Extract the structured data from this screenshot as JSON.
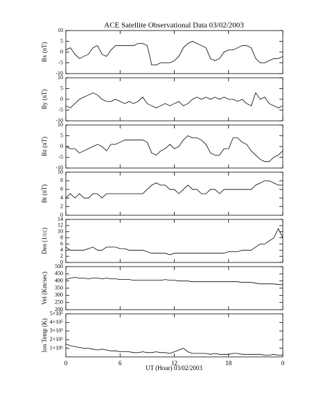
{
  "chart_data": {
    "type": "line",
    "title": "ACE Satellite Observational Data   03/02/2003",
    "x_label": "UT (Hour)   03/02/2003",
    "x": [
      0,
      0.5,
      1,
      1.5,
      2,
      2.5,
      3,
      3.5,
      4,
      4.5,
      5,
      5.5,
      6,
      6.5,
      7,
      7.5,
      8,
      8.5,
      9,
      9.5,
      10,
      10.5,
      11,
      11.5,
      12,
      12.5,
      13,
      13.5,
      14,
      14.5,
      15,
      15.5,
      16,
      16.5,
      17,
      17.5,
      18,
      18.5,
      19,
      19.5,
      20,
      20.5,
      21,
      21.5,
      22,
      22.5,
      23,
      23.5,
      24
    ],
    "xlim": [
      0,
      24
    ],
    "xticks": [
      0,
      6,
      12,
      18,
      {
        "value": 24,
        "label": "0"
      }
    ],
    "series": [
      {
        "name": "Bx (nT)",
        "color": "#000000",
        "ylim": [
          -10,
          10
        ],
        "yticks": [
          -10,
          -5,
          0,
          5,
          10
        ],
        "values": [
          1,
          2,
          -1,
          -3,
          -2,
          -1,
          2,
          3,
          -1,
          -2,
          1,
          3,
          3,
          3,
          3,
          3,
          4,
          4,
          3,
          -6,
          -6,
          -5,
          -5,
          -5,
          -4,
          -2,
          2,
          4,
          5,
          4,
          3,
          2,
          -3,
          -4,
          -3,
          0,
          1,
          1,
          2,
          3,
          3,
          2,
          -3,
          -5,
          -5,
          -4,
          -3,
          -3,
          -2
        ]
      },
      {
        "name": "By (nT)",
        "color": "#000000",
        "ylim": [
          -10,
          10
        ],
        "yticks": [
          -10,
          -5,
          0,
          5,
          10
        ],
        "values": [
          -3,
          -4,
          -2,
          0,
          1,
          2,
          3,
          2,
          0,
          -1,
          -1,
          0,
          -1,
          -2,
          -1,
          -2,
          -1,
          1,
          -2,
          -3,
          -4,
          -3,
          -2,
          -3,
          -2,
          -1,
          -3,
          -2,
          0,
          1,
          0,
          1,
          0,
          1,
          0,
          1,
          0,
          0,
          -1,
          0,
          -2,
          -3,
          3,
          0,
          1,
          -2,
          -3,
          -4,
          -3
        ]
      },
      {
        "name": "Bz (nT)",
        "color": "#000000",
        "ylim": [
          -10,
          10
        ],
        "yticks": [
          -10,
          -5,
          0,
          5,
          10
        ],
        "values": [
          0,
          -1,
          -1,
          -3,
          -2,
          -1,
          0,
          1,
          0,
          -2,
          1,
          1,
          2,
          3,
          3,
          3,
          3,
          3,
          2,
          -3,
          -4,
          -2,
          -1,
          1,
          -1,
          0,
          3,
          5,
          4,
          4,
          3,
          1,
          -3,
          -4,
          -4,
          -1,
          -1,
          4,
          4,
          2,
          1,
          -2,
          -4,
          -6,
          -7,
          -7,
          -5,
          -4,
          -2
        ]
      },
      {
        "name": "Bt (nT)",
        "color": "#000000",
        "ylim": [
          0,
          10
        ],
        "yticks": [
          0,
          2,
          4,
          6,
          8,
          10
        ],
        "values": [
          4,
          5,
          4,
          5,
          4,
          4,
          5,
          5,
          4,
          5,
          5,
          5,
          5,
          5,
          5,
          5,
          5,
          5,
          6,
          7,
          7.5,
          7,
          7,
          6,
          6,
          5,
          6,
          7,
          6,
          6,
          5,
          5,
          6,
          6,
          5,
          6,
          6,
          6,
          6,
          6,
          6,
          6,
          7,
          7.5,
          8,
          8,
          7.5,
          7,
          7
        ]
      },
      {
        "name": "Den (1/cc)",
        "color": "#000000",
        "ylim": [
          0,
          14
        ],
        "yticks": [
          0,
          2,
          4,
          6,
          8,
          10,
          12,
          14
        ],
        "values": [
          5,
          4,
          4,
          4,
          4,
          4.5,
          5,
          4,
          4,
          5,
          5,
          5,
          4.5,
          4.5,
          4,
          4,
          4,
          4,
          3.5,
          3,
          3,
          3,
          3,
          2.5,
          3,
          3,
          3,
          3,
          3,
          3,
          3,
          3,
          3,
          3,
          3,
          3,
          3.5,
          3.5,
          3.5,
          4,
          4,
          4,
          5,
          6,
          6,
          7,
          8,
          11,
          8
        ]
      },
      {
        "name": "Vel (Km/sec)",
        "color": "#000000",
        "ylim": [
          200,
          500
        ],
        "yticks": [
          200,
          250,
          300,
          350,
          400,
          450,
          500
        ],
        "values": [
          410,
          420,
          425,
          420,
          420,
          415,
          420,
          420,
          415,
          420,
          415,
          415,
          410,
          410,
          410,
          405,
          405,
          405,
          405,
          405,
          405,
          405,
          410,
          405,
          405,
          400,
          400,
          400,
          395,
          395,
          395,
          395,
          395,
          395,
          395,
          395,
          395,
          395,
          395,
          390,
          390,
          390,
          385,
          380,
          380,
          380,
          380,
          375,
          375
        ]
      },
      {
        "name": "Ion Temp (K)",
        "color": "#000000",
        "ylim": [
          0,
          500000
        ],
        "yticks": [
          {
            "value": 100000,
            "label": "1×10⁵"
          },
          {
            "value": 200000,
            "label": "2×10⁵"
          },
          {
            "value": 300000,
            "label": "3×10⁵"
          },
          {
            "value": 400000,
            "label": "4×10⁵"
          },
          {
            "value": 500000,
            "label": "5×10⁵"
          }
        ],
        "values": [
          150000,
          130000,
          120000,
          110000,
          100000,
          100000,
          90000,
          80000,
          90000,
          80000,
          70000,
          70000,
          60000,
          60000,
          60000,
          50000,
          50000,
          60000,
          50000,
          50000,
          60000,
          50000,
          50000,
          40000,
          60000,
          80000,
          100000,
          60000,
          40000,
          40000,
          40000,
          40000,
          30000,
          40000,
          30000,
          30000,
          30000,
          40000,
          40000,
          30000,
          30000,
          30000,
          30000,
          30000,
          20000,
          20000,
          30000,
          20000,
          20000
        ]
      }
    ]
  }
}
